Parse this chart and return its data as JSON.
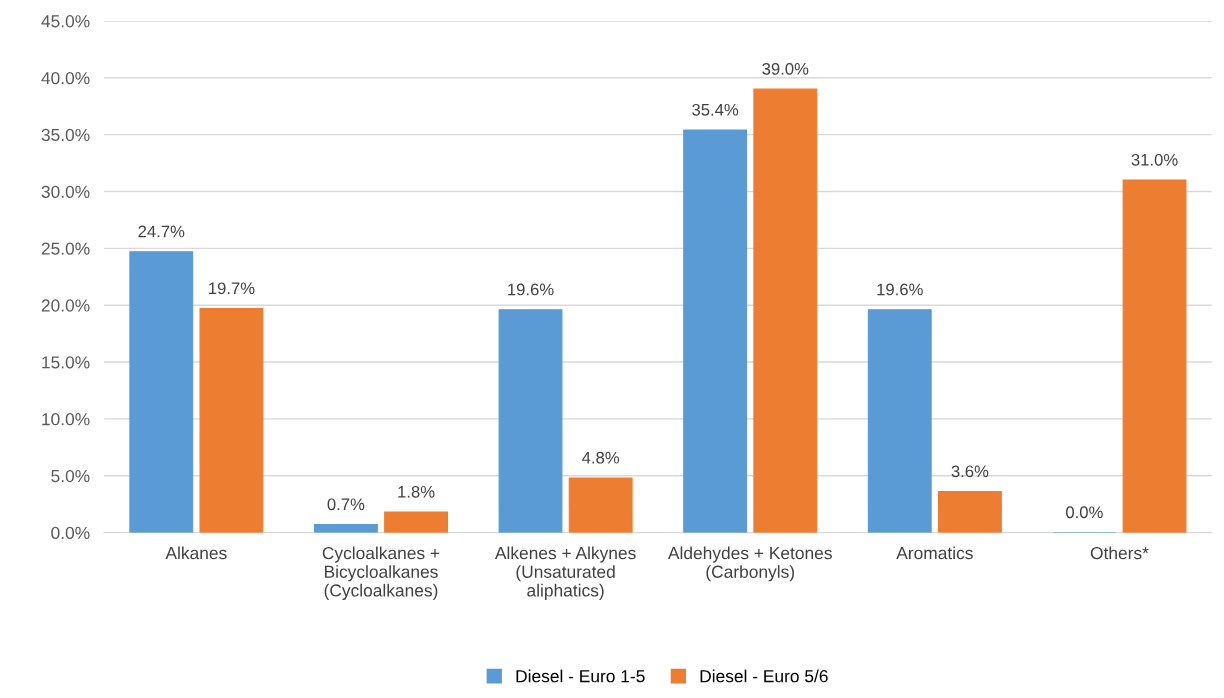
{
  "chart_data": {
    "type": "bar",
    "categories": [
      "Alkanes",
      "Cycloalkanes +\nBicycloalkanes\n(Cycloalkanes)",
      "Alkenes + Alkynes\n(Unsaturated\naliphatics)",
      "Aldehydes + Ketones\n(Carbonyls)",
      "Aromatics",
      "Others*"
    ],
    "series": [
      {
        "name": "Diesel - Euro 1-5",
        "color": "#5b9bd5",
        "values": [
          24.7,
          0.7,
          19.6,
          35.4,
          19.6,
          0.0
        ],
        "value_labels": [
          "24.7%",
          "0.7%",
          "19.6%",
          "35.4%",
          "19.6%",
          "0.0%"
        ]
      },
      {
        "name": "Diesel - Euro 5/6",
        "color": "#ed7d31",
        "values": [
          19.7,
          1.8,
          4.8,
          39.0,
          3.6,
          31.0
        ],
        "value_labels": [
          "19.7%",
          "1.8%",
          "4.8%",
          "39.0%",
          "3.6%",
          "31.0%"
        ]
      }
    ],
    "ylim": [
      0,
      45
    ],
    "yticks": [
      {
        "value": 0,
        "label": "0.0%"
      },
      {
        "value": 5,
        "label": "5.0%"
      },
      {
        "value": 10,
        "label": "10.0%"
      },
      {
        "value": 15,
        "label": "15.0%"
      },
      {
        "value": 20,
        "label": "20.0%"
      },
      {
        "value": 25,
        "label": "25.0%"
      },
      {
        "value": 30,
        "label": "30.0%"
      },
      {
        "value": 35,
        "label": "35.0%"
      },
      {
        "value": 40,
        "label": "40.0%"
      },
      {
        "value": 45,
        "label": "45.0%"
      }
    ],
    "grid": "y",
    "legend": "bottom"
  }
}
